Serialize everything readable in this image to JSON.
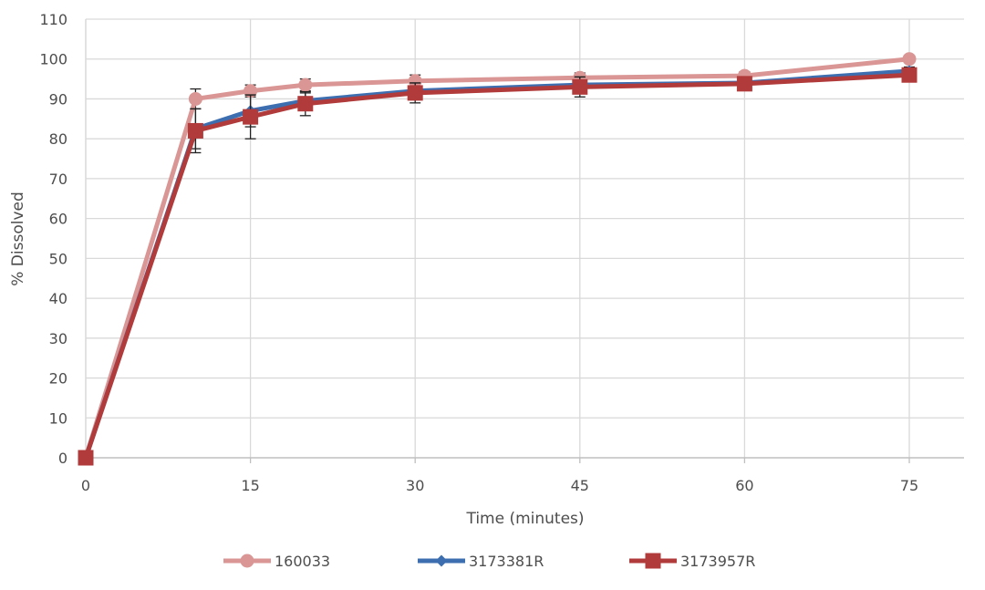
{
  "chart_data": {
    "type": "line",
    "title": "",
    "xlabel": "Time (minutes)",
    "ylabel": "% Dissolved",
    "xlim": [
      0,
      75
    ],
    "ylim": [
      0,
      110
    ],
    "x_ticks": [
      0,
      15,
      30,
      45,
      60,
      75
    ],
    "y_ticks": [
      0,
      10,
      20,
      30,
      40,
      50,
      60,
      70,
      80,
      90,
      100,
      110
    ],
    "grid": true,
    "legend_position": "bottom",
    "x": [
      0,
      10,
      15,
      20,
      30,
      45,
      60,
      75
    ],
    "series": [
      {
        "name": "160033",
        "color": "#d99694",
        "marker": "circle",
        "values": [
          0,
          90,
          92,
          93.5,
          94.5,
          95.3,
          95.8,
          100
        ],
        "error": [
          0,
          2.5,
          1.5,
          1.5,
          1.5,
          1.2,
          1.0,
          0.8
        ]
      },
      {
        "name": "3173381R",
        "color": "#3d6eb0",
        "marker": "diamond",
        "values": [
          0,
          82.5,
          87,
          89.5,
          92,
          93.5,
          94,
          97
        ],
        "error": [
          0,
          5,
          4,
          2,
          2,
          2,
          1,
          1
        ]
      },
      {
        "name": "3173957R",
        "color": "#b13a3a",
        "marker": "square",
        "values": [
          0,
          82,
          85.5,
          88.8,
          91.5,
          93,
          93.8,
          96
        ],
        "error": [
          0,
          5.5,
          5.5,
          3,
          2.5,
          2.5,
          1.5,
          1
        ]
      }
    ]
  }
}
